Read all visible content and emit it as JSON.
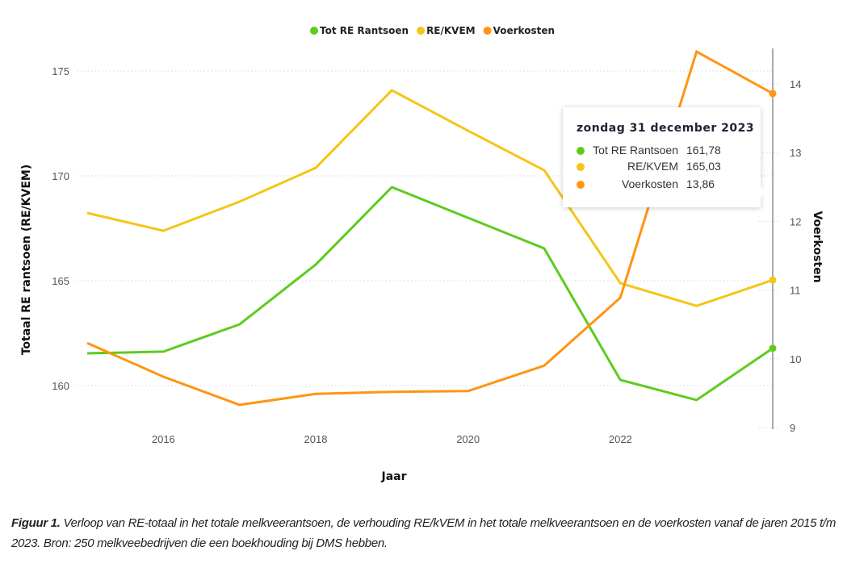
{
  "chart_data": {
    "type": "line",
    "title": "",
    "x": [
      "2014-12-31",
      "2015-12-31",
      "2016-12-31",
      "2017-12-31",
      "2018-12-31",
      "2019-12-31",
      "2020-12-31",
      "2021-12-31",
      "2022-12-31",
      "2023-12-31"
    ],
    "xlabel": "Jaar",
    "x_ticks": [
      "2016",
      "2018",
      "2020",
      "2022"
    ],
    "ylabel_left": "Totaal RE rantsoen (RE/KVEM)",
    "ylabel_right": "Voerkosten",
    "ylim_left": [
      158,
      176.5
    ],
    "ylim_right": [
      9,
      14.6
    ],
    "y_ticks_left": [
      "160",
      "165",
      "170",
      "175"
    ],
    "y_ticks_right": [
      "9",
      "10",
      "11",
      "12",
      "13",
      "14"
    ],
    "grid": true,
    "legend_position": "top-center",
    "series": [
      {
        "name": "Tot RE Rantsoen",
        "axis": "left",
        "color": "#5ecb1e",
        "values": [
          161.54,
          161.62,
          162.92,
          165.77,
          169.46,
          168.0,
          166.54,
          160.27,
          159.31,
          161.78
        ]
      },
      {
        "name": "RE/KVEM",
        "axis": "left",
        "color": "#f5c518",
        "values": [
          168.23,
          167.38,
          168.77,
          170.38,
          174.08,
          172.15,
          170.27,
          164.88,
          163.8,
          165.03
        ]
      },
      {
        "name": "Voerkosten",
        "axis": "right",
        "color": "#ff9511",
        "values": [
          10.23,
          9.74,
          9.33,
          9.49,
          9.52,
          9.53,
          9.9,
          10.89,
          14.47,
          13.86
        ]
      }
    ]
  },
  "tooltip": {
    "title": "zondag 31 december 2023",
    "rows": [
      {
        "label": "Tot RE Rantsoen",
        "value": "161,78",
        "color": "#5ecb1e"
      },
      {
        "label": "RE/KVEM",
        "value": "165,03",
        "color": "#f5c518"
      },
      {
        "label": "Voerkosten",
        "value": "13,86",
        "color": "#ff9511"
      }
    ]
  },
  "caption": {
    "label": "Figuur 1.",
    "text": " Verloop van RE-totaal in het totale melkveerantsoen, de verhouding RE/kVEM in het totale melkveerantsoen en de voerkosten vanaf de jaren 2015 t/m 2023. Bron: 250 melkveebedrijven die een boekhouding bij DMS hebben."
  }
}
